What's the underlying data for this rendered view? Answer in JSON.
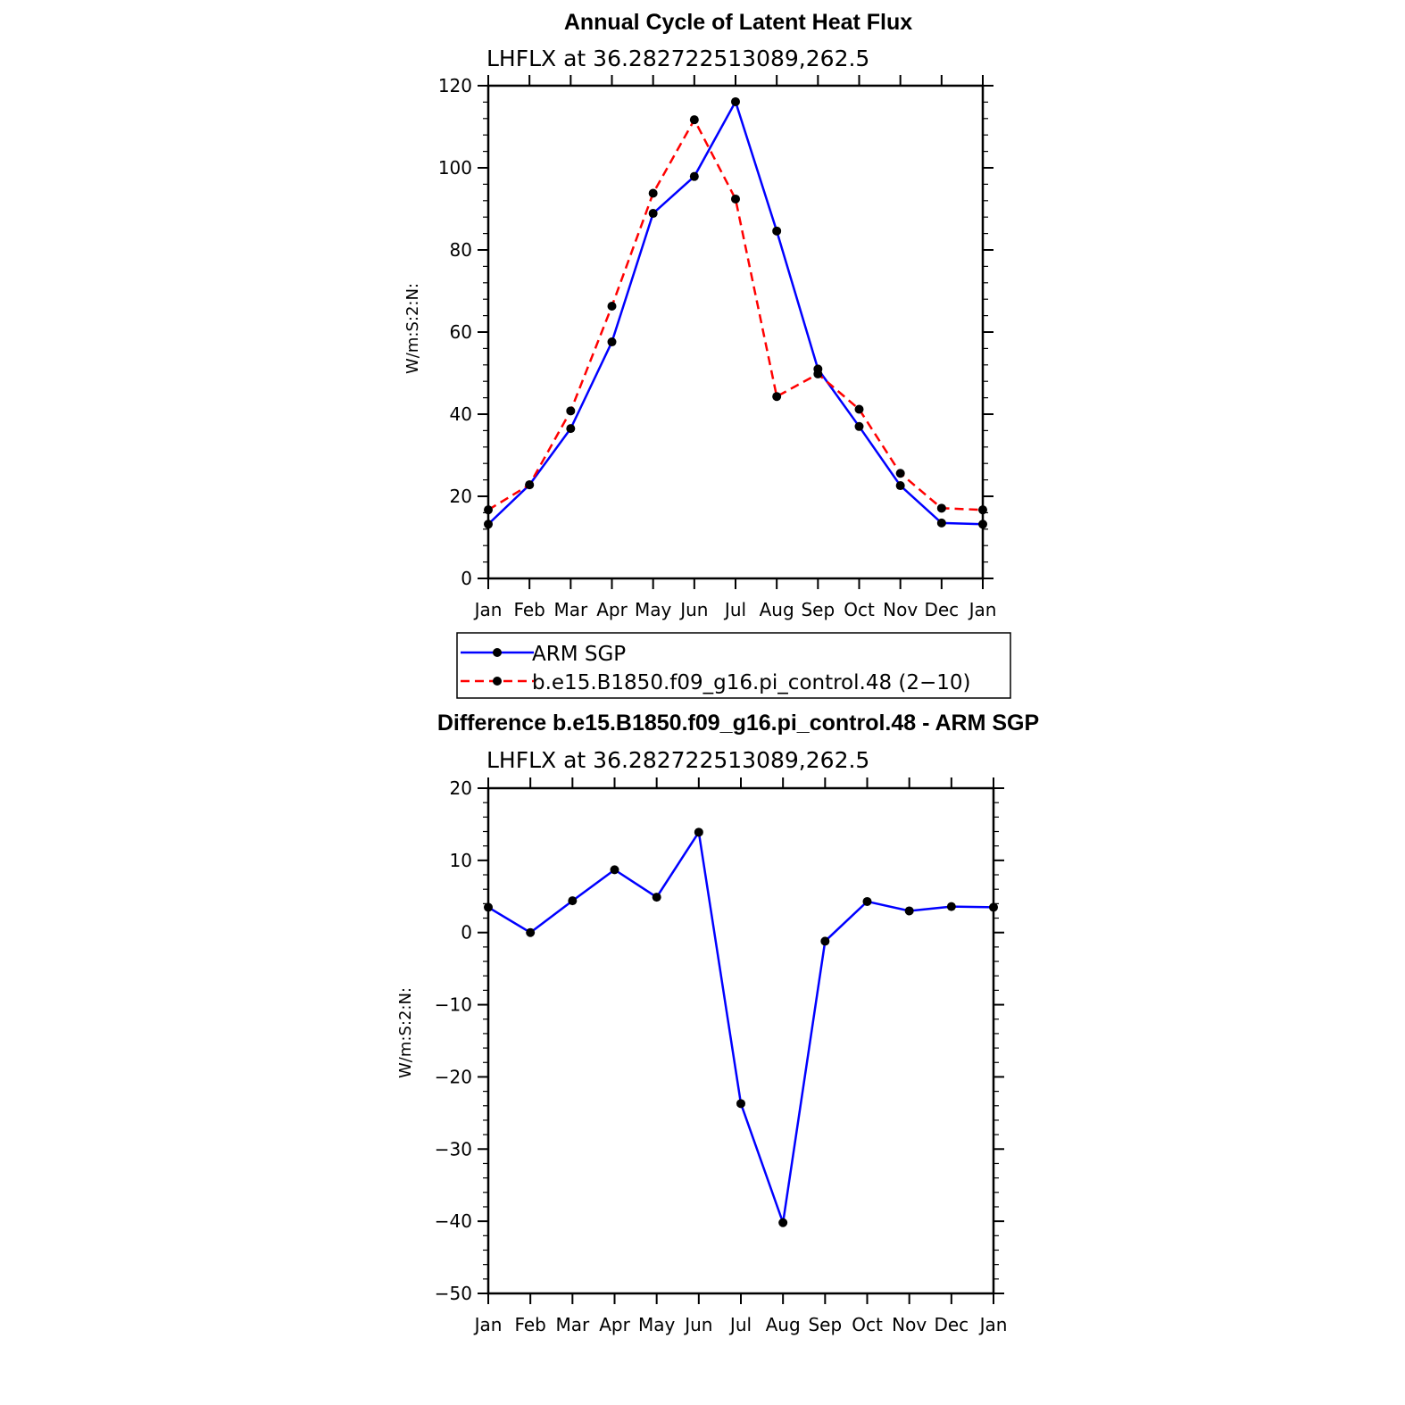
{
  "colors": {
    "obs": "#0000ff",
    "model": "#ff0000",
    "marker": "#000000"
  },
  "chart_data": [
    {
      "type": "line",
      "title": "Annual Cycle of Latent Heat Flux",
      "subtitle": "LHFLX at 36.282722513089,262.5",
      "ylabel": "W/m:S:2:N:",
      "xlabel": "",
      "categories": [
        "Jan",
        "Feb",
        "Mar",
        "Apr",
        "May",
        "Jun",
        "Jul",
        "Aug",
        "Sep",
        "Oct",
        "Nov",
        "Dec",
        "Jan"
      ],
      "ylim": [
        0,
        120
      ],
      "yticks": [
        0,
        20,
        40,
        60,
        80,
        100,
        120
      ],
      "series": [
        {
          "name": "ARM SGP",
          "style": "solid",
          "color": "#0000ff",
          "values": [
            13.2,
            22.8,
            36.5,
            57.6,
            88.9,
            97.9,
            116.1,
            84.6,
            51.0,
            37.0,
            22.6,
            13.5,
            13.2
          ]
        },
        {
          "name": "b.e15.B1850.f09_g16.pi_control.48 (2−10)",
          "style": "dashed",
          "color": "#ff0000",
          "values": [
            16.7,
            22.8,
            40.8,
            66.3,
            93.8,
            111.7,
            92.4,
            44.3,
            49.8,
            41.2,
            25.6,
            17.1,
            16.7
          ]
        }
      ],
      "legend": {
        "position": "bottom"
      }
    },
    {
      "type": "line",
      "title": "Difference b.e15.B1850.f09_g16.pi_control.48 - ARM SGP",
      "subtitle": "LHFLX at 36.282722513089,262.5",
      "ylabel": "W/m:S:2:N:",
      "xlabel": "",
      "categories": [
        "Jan",
        "Feb",
        "Mar",
        "Apr",
        "May",
        "Jun",
        "Jul",
        "Aug",
        "Sep",
        "Oct",
        "Nov",
        "Dec",
        "Jan"
      ],
      "ylim": [
        -50,
        20
      ],
      "yticks": [
        -50,
        -40,
        -30,
        -20,
        -10,
        0,
        10,
        20
      ],
      "ytick_labels": [
        "−50",
        "−40",
        "−30",
        "−20",
        "−10",
        "0",
        "10",
        "20"
      ],
      "series": [
        {
          "name": "Difference",
          "style": "solid",
          "color": "#0000ff",
          "values": [
            3.5,
            0.0,
            4.4,
            8.7,
            4.9,
            13.9,
            -23.7,
            -40.2,
            -1.2,
            4.3,
            3.0,
            3.6,
            3.5
          ]
        }
      ]
    }
  ]
}
